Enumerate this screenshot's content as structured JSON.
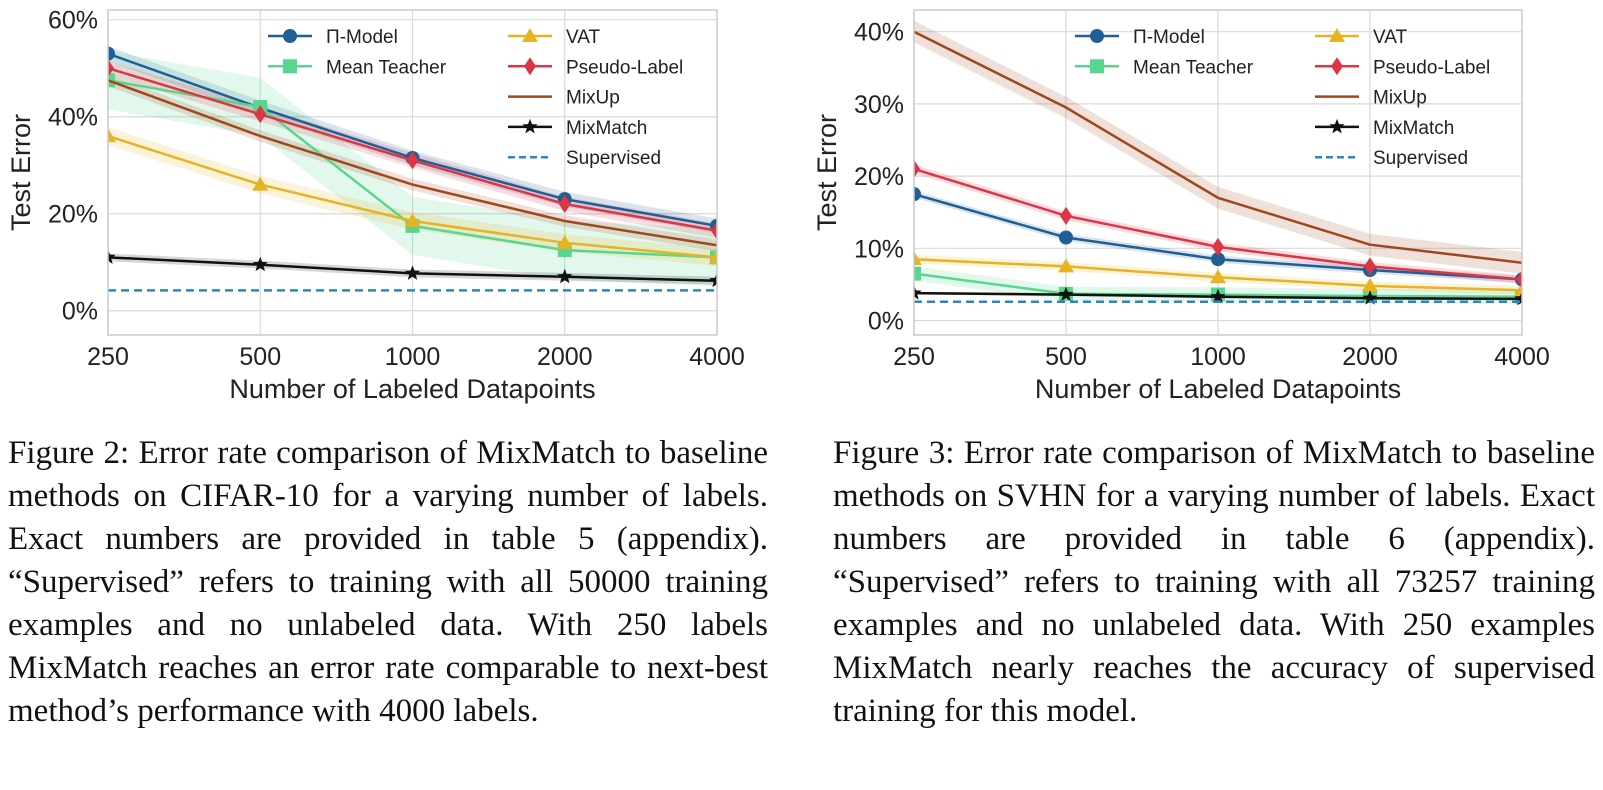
{
  "colors": {
    "pi_model": "#1f5f96",
    "mean_teacher": "#58d68d",
    "vat": "#e6b422",
    "pseudo_label": "#dc3545",
    "mixup": "#a0471e",
    "mixmatch": "#111111",
    "supervised": "#2e86c1"
  },
  "chart_data": [
    {
      "type": "line",
      "title": "",
      "xlabel": "Number of Labeled Datapoints",
      "ylabel": "Test Error",
      "x_scale": "log",
      "categories": [
        "250",
        "500",
        "1000",
        "2000",
        "4000"
      ],
      "x": [
        250,
        500,
        1000,
        2000,
        4000
      ],
      "ylim": [
        -5,
        62
      ],
      "yticks": [
        "0%",
        "20%",
        "40%",
        "60%"
      ],
      "ytick_values": [
        0,
        20,
        40,
        60
      ],
      "grid": true,
      "legend_position": "top",
      "series": [
        {
          "name": "Π-Model",
          "values": [
            53,
            41.8,
            31.5,
            23,
            17.5
          ],
          "color_key": "pi_model",
          "marker": "circle",
          "band": 1.5
        },
        {
          "name": "Mean Teacher",
          "values": [
            47.5,
            42,
            17.5,
            12.5,
            11
          ],
          "color_key": "mean_teacher",
          "marker": "square",
          "band": 6
        },
        {
          "name": "VAT",
          "values": [
            36,
            26,
            18.5,
            14,
            11
          ],
          "color_key": "vat",
          "marker": "triangle",
          "band": 1.8
        },
        {
          "name": "Pseudo-Label",
          "values": [
            50,
            40.5,
            31,
            22,
            16.5
          ],
          "color_key": "pseudo_label",
          "marker": "diamond",
          "band": 1.5
        },
        {
          "name": "MixUp",
          "values": [
            47.5,
            36,
            26,
            18.5,
            13.5
          ],
          "color_key": "mixup",
          "marker": "none",
          "band": 1.2
        },
        {
          "name": "MixMatch",
          "values": [
            11,
            9.5,
            7.7,
            7,
            6.2
          ],
          "color_key": "mixmatch",
          "marker": "star",
          "band": 0.8
        },
        {
          "name": "Supervised",
          "values": [
            4.2,
            4.2,
            4.2,
            4.2,
            4.2
          ],
          "color_key": "supervised",
          "marker": "none",
          "dashed": true,
          "band": 0
        }
      ]
    },
    {
      "type": "line",
      "title": "",
      "xlabel": "Number of Labeled Datapoints",
      "ylabel": "Test Error",
      "x_scale": "log",
      "categories": [
        "250",
        "500",
        "1000",
        "2000",
        "4000"
      ],
      "x": [
        250,
        500,
        1000,
        2000,
        4000
      ],
      "ylim": [
        -2,
        43
      ],
      "yticks": [
        "0%",
        "10%",
        "20%",
        "30%",
        "40%"
      ],
      "ytick_values": [
        0,
        10,
        20,
        30,
        40
      ],
      "grid": true,
      "legend_position": "top",
      "series": [
        {
          "name": "Π-Model",
          "values": [
            17.5,
            11.5,
            8.5,
            7,
            5.7
          ],
          "color_key": "pi_model",
          "marker": "circle",
          "band": 0.5
        },
        {
          "name": "Mean Teacher",
          "values": [
            6.5,
            3.7,
            3.6,
            3.4,
            3.3
          ],
          "color_key": "mean_teacher",
          "marker": "square",
          "band": 1.0
        },
        {
          "name": "VAT",
          "values": [
            8.5,
            7.5,
            6,
            4.8,
            4.2
          ],
          "color_key": "vat",
          "marker": "triangle",
          "band": 0.6
        },
        {
          "name": "Pseudo-Label",
          "values": [
            21,
            14.5,
            10.2,
            7.5,
            5.7
          ],
          "color_key": "pseudo_label",
          "marker": "diamond",
          "band": 0.6
        },
        {
          "name": "MixUp",
          "values": [
            40,
            29.5,
            17,
            10.5,
            8
          ],
          "color_key": "mixup",
          "marker": "none",
          "band": 1.5
        },
        {
          "name": "MixMatch",
          "values": [
            3.8,
            3.6,
            3.3,
            3.1,
            3.0
          ],
          "color_key": "mixmatch",
          "marker": "star",
          "band": 0.2
        },
        {
          "name": "Supervised",
          "values": [
            2.6,
            2.6,
            2.6,
            2.6,
            2.6
          ],
          "color_key": "supervised",
          "marker": "none",
          "dashed": true,
          "band": 0
        }
      ]
    }
  ],
  "captions": {
    "figure2": "Figure 2: Error rate comparison of MixMatch to baseline methods on CIFAR-10 for a varying number of labels. Exact numbers are provided in table 5 (appendix). “Supervised” refers to training with all 50000 training examples and no unlabeled data. With 250 labels MixMatch reaches an error rate comparable to next-best method’s performance with 4000 labels.",
    "figure3": "Figure 3: Error rate comparison of MixMatch to baseline methods on SVHN for a varying number of labels. Exact numbers are provided in table 6 (appendix). “Supervised” refers to training with all 73257 training examples and no unlabeled data. With 250 examples MixMatch nearly reaches the accuracy of supervised training for this model."
  }
}
